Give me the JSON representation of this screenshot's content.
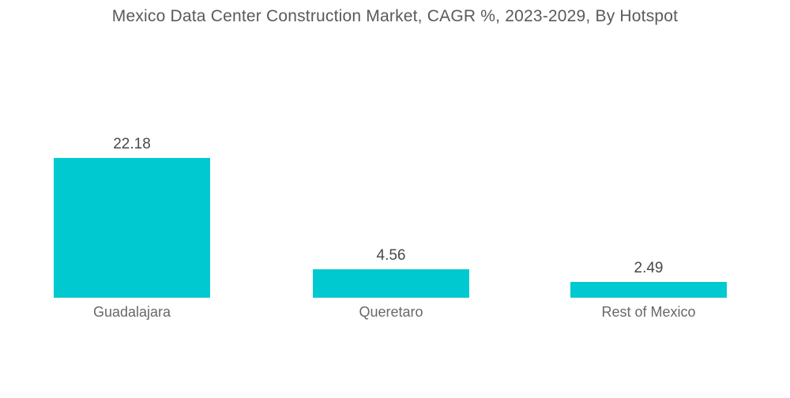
{
  "chart_data": {
    "type": "bar",
    "title": "Mexico Data Center Construction Market, CAGR %, 2023-2029, By Hotspot",
    "categories": [
      "Guadalajara",
      "Queretaro",
      "Rest of Mexico"
    ],
    "values": [
      22.18,
      4.56,
      2.49
    ],
    "value_labels": [
      "22.18",
      "4.56",
      "2.49"
    ],
    "series_name": "CAGR %",
    "orientation": "vertical",
    "grid": false,
    "legend": false,
    "axes_visible": false,
    "ylim": [
      0,
      22.18
    ],
    "bar_color": "#00C9D0",
    "title_color": "#595A5C",
    "value_label_color": "#48494B",
    "category_label_color": "#67686B",
    "background_color": "#FFFFFF"
  }
}
